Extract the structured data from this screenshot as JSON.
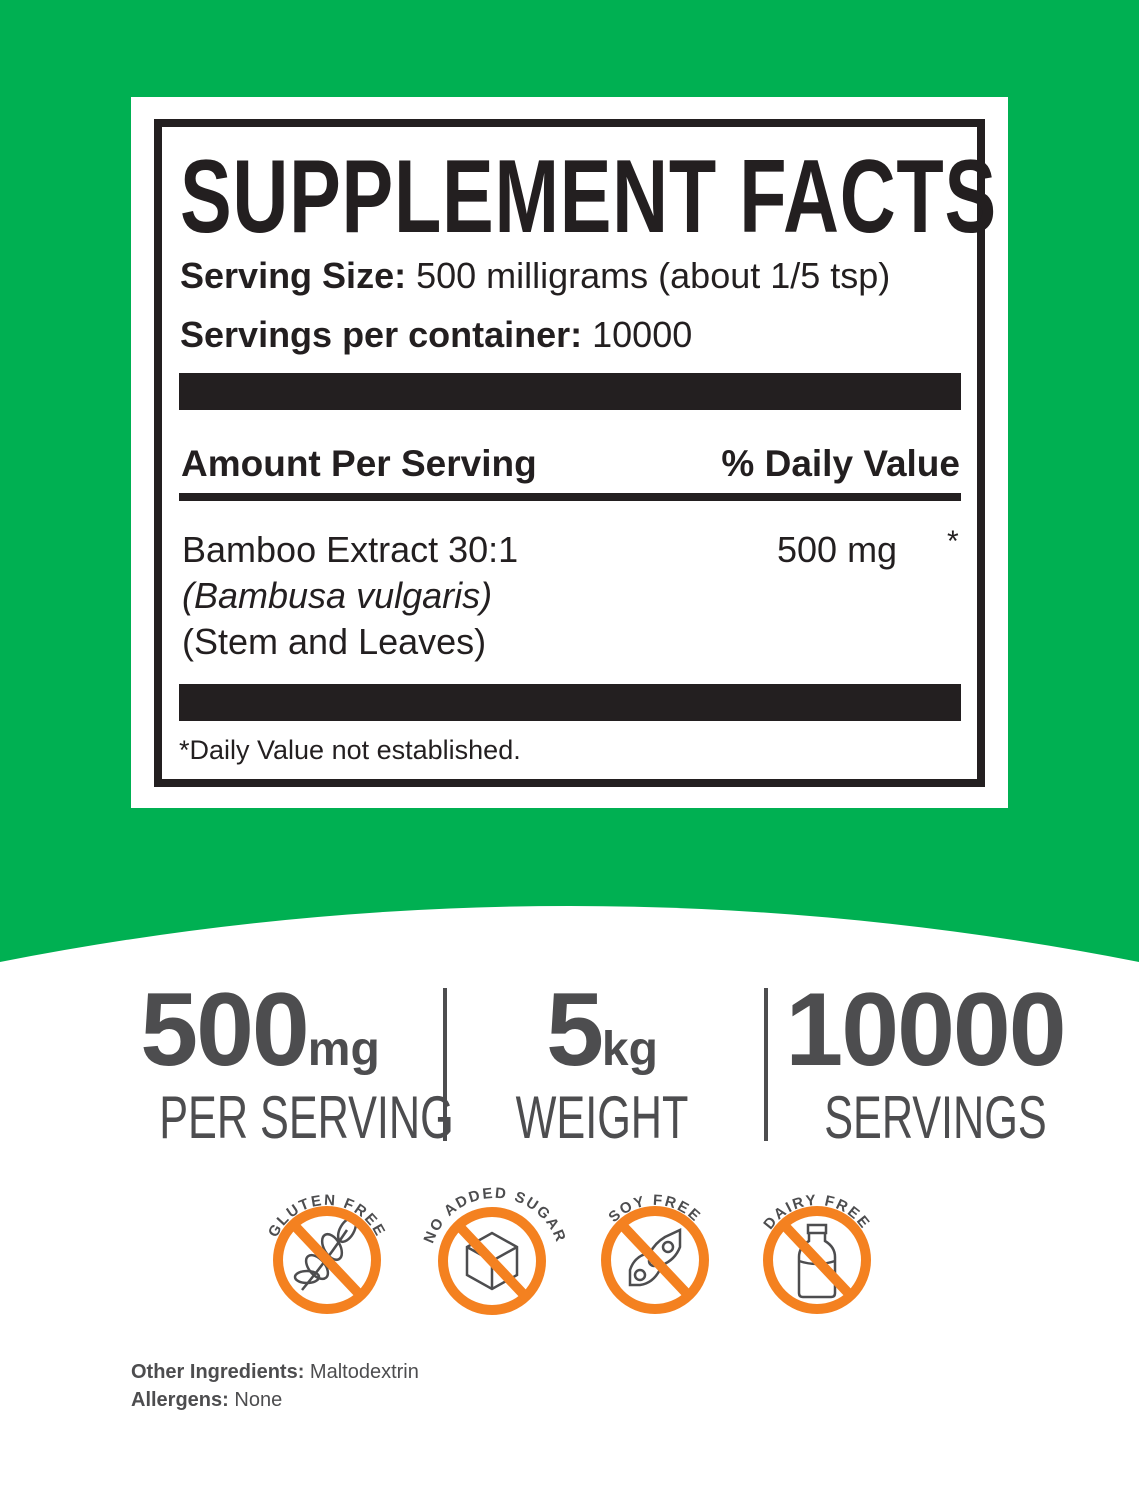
{
  "colors": {
    "background_green": "#00b052",
    "ink": "#231f20",
    "stats_gray": "#4d4d4f",
    "badge_orange": "#f48120"
  },
  "facts": {
    "title": "SUPPLEMENT FACTS",
    "serving_size_label": "Serving Size:",
    "serving_size_value": "500 milligrams (about 1/5 tsp)",
    "servings_label": "Servings per container:",
    "servings_value": "10000",
    "amount_header": "Amount Per Serving",
    "dv_header": "% Daily Value",
    "ingredient": {
      "name": "Bamboo Extract 30:1",
      "latin": "(Bambusa vulgaris)",
      "parts": "(Stem and Leaves)",
      "amount": "500 mg",
      "dv": "*"
    },
    "footnote": "*Daily Value not established."
  },
  "stats": [
    {
      "number": "500",
      "unit": "mg",
      "label": "PER SERVING"
    },
    {
      "number": "5",
      "unit": "kg",
      "label": "WEIGHT"
    },
    {
      "number": "10000",
      "unit": "",
      "label": "SERVINGS"
    }
  ],
  "badges": [
    {
      "label": "GLUTEN FREE",
      "icon": "wheat-icon"
    },
    {
      "label": "NO ADDED SUGAR",
      "icon": "sugar-cube-icon"
    },
    {
      "label": "SOY FREE",
      "icon": "soybean-icon"
    },
    {
      "label": "DAIRY FREE",
      "icon": "milk-bottle-icon"
    }
  ],
  "other": {
    "ingredients_label": "Other Ingredients:",
    "ingredients_value": "Maltodextrin",
    "allergens_label": "Allergens:",
    "allergens_value": "None"
  }
}
